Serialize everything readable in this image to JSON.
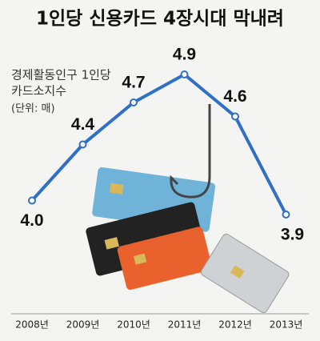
{
  "chart_data": {
    "type": "line",
    "title": "1인당 신용카드 4장시대 막내려",
    "subtitle": [
      "경제활동인구 1인당",
      "카드소지수",
      "(단위: 매)"
    ],
    "categories": [
      "2008년",
      "2009년",
      "2010년",
      "2011년",
      "2012년",
      "2013년"
    ],
    "values": [
      4.0,
      4.4,
      4.7,
      4.9,
      4.6,
      3.9
    ],
    "value_labels": [
      "4.0",
      "4.4",
      "4.7",
      "4.9",
      "4.6",
      "3.9"
    ],
    "color": "#2f6fc6"
  }
}
